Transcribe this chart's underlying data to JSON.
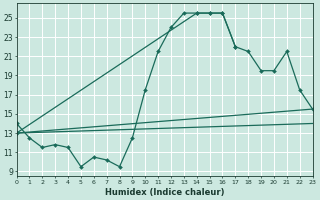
{
  "title": "",
  "xlabel": "Humidex (Indice chaleur)",
  "bg_color": "#cce8e0",
  "grid_color": "#ffffff",
  "line_color": "#1a6b5a",
  "xlim": [
    0,
    23
  ],
  "ylim": [
    8.5,
    26.5
  ],
  "xticks": [
    0,
    1,
    2,
    3,
    4,
    5,
    6,
    7,
    8,
    9,
    10,
    11,
    12,
    13,
    14,
    15,
    16,
    17,
    18,
    19,
    20,
    21,
    22,
    23
  ],
  "yticks": [
    9,
    11,
    13,
    15,
    17,
    19,
    21,
    23,
    25
  ],
  "series": [
    {
      "x": [
        0,
        1,
        2,
        3,
        4,
        5,
        6,
        7,
        8,
        9,
        10,
        11,
        12,
        13,
        14,
        15,
        16,
        17,
        18,
        19,
        20,
        21
      ],
      "y": [
        14,
        12.5,
        11.5,
        11.8,
        11.5,
        9.5,
        10.5,
        10.2,
        9.5,
        12.5,
        17.5,
        21.5,
        24.0,
        25.5,
        25.5,
        25.5,
        25.5,
        22.0,
        null,
        null,
        null,
        null
      ]
    },
    {
      "x": [
        0,
        23
      ],
      "y": [
        13.0,
        14.0
      ]
    },
    {
      "x": [
        0,
        23
      ],
      "y": [
        13.0,
        15.5
      ]
    },
    {
      "x": [
        0,
        14,
        15,
        16,
        17,
        18,
        19,
        20,
        21,
        22,
        23
      ],
      "y": [
        13.0,
        25.5,
        25.5,
        25.5,
        22.0,
        21.5,
        19.5,
        19.5,
        21.5,
        17.5,
        15.5
      ]
    }
  ]
}
